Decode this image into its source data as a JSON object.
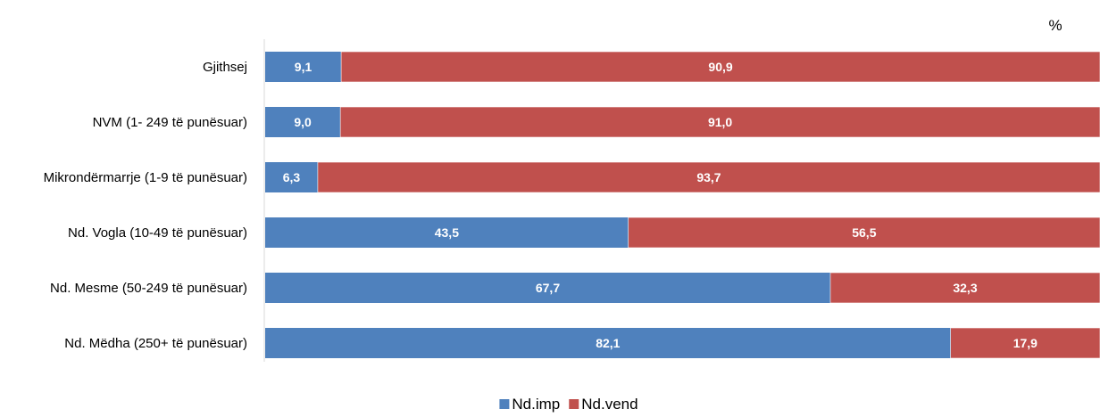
{
  "chart_data": {
    "type": "bar",
    "orientation": "horizontal",
    "stacked": true,
    "unit_label": "%",
    "categories": [
      "Gjithsej",
      "NVM  (1- 249 të punësuar)",
      "Mikrondërmarrje (1-9 të punësuar)",
      "Nd. Vogla (10-49 të punësuar)",
      "Nd. Mesme (50-249 të punësuar)",
      "Nd. Mëdha (250+ të punësuar)"
    ],
    "series": [
      {
        "name": "Nd.imp",
        "color": "#4f81bd",
        "values": [
          9.1,
          9.0,
          6.3,
          43.5,
          67.7,
          82.1
        ],
        "labels": [
          "9,1",
          "9,0",
          "6,3",
          "43,5",
          "67,7",
          "82,1"
        ]
      },
      {
        "name": "Nd.vend",
        "color": "#c0504d",
        "values": [
          90.9,
          91.0,
          93.7,
          56.5,
          32.3,
          17.9
        ],
        "labels": [
          "90,9",
          "91,0",
          "93,7",
          "56,5",
          "32,3",
          "17,9"
        ]
      }
    ],
    "xlim": [
      0,
      100
    ],
    "grid": false,
    "legend_position": "bottom"
  }
}
